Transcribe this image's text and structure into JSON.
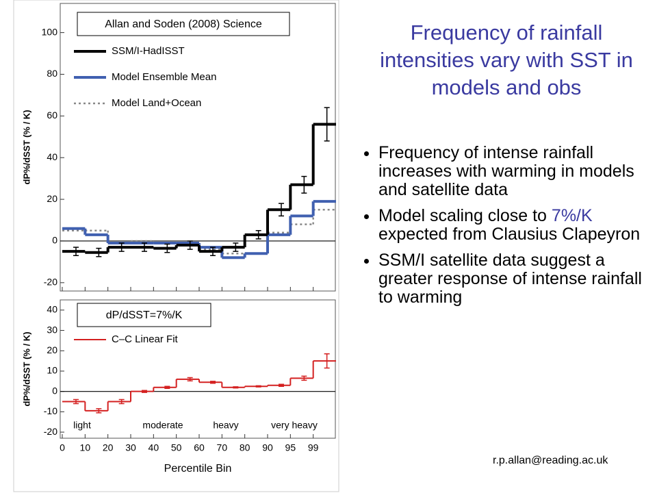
{
  "slide": {
    "title": "Frequency of rainfall intensities vary with SST in models and obs",
    "bullets": [
      {
        "text": "Frequency of intense rainfall increases with warming in models and satellite data"
      },
      {
        "before": "Model scaling close to",
        "highlight": "7%/K",
        "after": "expected from Clausius Clapeyron"
      },
      {
        "text": "SSM/I satellite data suggest a greater response of intense rainfall to warming"
      }
    ],
    "email": "r.p.allan@reading.ac.uk"
  },
  "chart_data": [
    {
      "type": "step",
      "annotation": "Allan and Soden (2008) Science",
      "ylabel": "dP%/dSST (% / K)",
      "categories": [
        "0",
        "10",
        "20",
        "30",
        "40",
        "50",
        "60",
        "70",
        "80",
        "90",
        "95",
        "99"
      ],
      "ylim": [
        -24,
        114
      ],
      "yticks": [
        -20,
        0,
        20,
        40,
        60,
        80,
        100
      ],
      "series": [
        {
          "name": "SSM/I-HadISST",
          "color": "#000000",
          "style": "solid",
          "width": 4,
          "values": [
            -5,
            -5.5,
            -3,
            -3,
            -3.5,
            -2,
            -5,
            -3,
            3,
            15,
            27,
            56
          ],
          "errors": [
            2,
            2,
            2,
            2,
            2,
            2,
            2,
            2,
            2,
            3,
            4,
            8
          ]
        },
        {
          "name": "Model Ensemble Mean",
          "color": "#4060b0",
          "style": "solid",
          "width": 4,
          "values": [
            6,
            3,
            -1,
            -1,
            -1,
            -1,
            -3,
            -8,
            -6,
            3,
            12,
            19
          ]
        },
        {
          "name": "Model Land+Ocean",
          "color": "#888888",
          "style": "dotted",
          "width": 2.5,
          "values": [
            5,
            5,
            -1,
            0,
            -1,
            -1,
            -4,
            -6,
            -6,
            4,
            8,
            15
          ]
        }
      ]
    },
    {
      "type": "step",
      "annotation": "dP/dSST=7%/K",
      "ylabel": "dP%/dSST (% / K)",
      "xlabel": "Percentile Bin",
      "categories": [
        "0",
        "10",
        "20",
        "30",
        "40",
        "50",
        "60",
        "70",
        "80",
        "90",
        "95",
        "99"
      ],
      "ylim": [
        -23,
        45
      ],
      "yticks": [
        -20,
        -10,
        0,
        10,
        20,
        30,
        40
      ],
      "regions": [
        "light",
        "moderate",
        "heavy",
        "very heavy"
      ],
      "series": [
        {
          "name": "C–C Linear Fit",
          "color": "#d42020",
          "style": "solid",
          "width": 2,
          "values": [
            -5,
            -9.5,
            -5,
            0,
            2,
            6,
            4.5,
            2,
            2.5,
            3,
            6.5,
            15
          ],
          "errors": [
            1,
            1,
            1,
            0.5,
            0.5,
            0.8,
            0.5,
            0.3,
            0.3,
            0.5,
            1,
            3.5
          ]
        }
      ]
    }
  ]
}
